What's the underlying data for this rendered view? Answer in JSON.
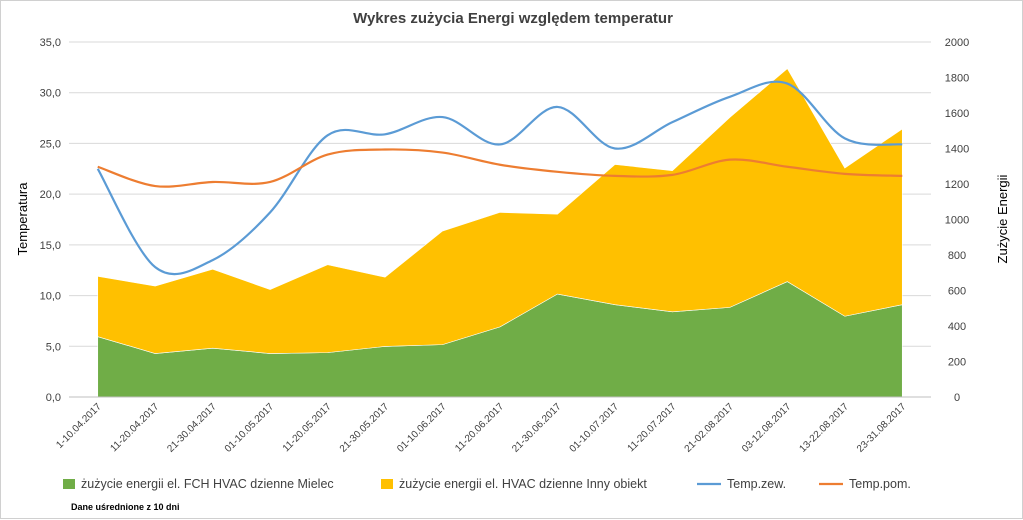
{
  "chart_data": {
    "type": "area",
    "title": "Wykres  zużycia  Energi względem  temperatur",
    "ylabel_left": "Temperatura",
    "ylabel_right": "Zużycie Energii",
    "ylim_left": [
      0,
      35
    ],
    "ylim_right": [
      0,
      2000
    ],
    "yticks_left": [
      "0,0",
      "5,0",
      "10,0",
      "15,0",
      "20,0",
      "25,0",
      "30,0",
      "35,0"
    ],
    "yticks_right": [
      "0",
      "200",
      "400",
      "600",
      "800",
      "1000",
      "1200",
      "1400",
      "1600",
      "1800",
      "2000"
    ],
    "grid": true,
    "legend_position": "bottom",
    "categories": [
      "1-10.04.2017",
      "11-20.04.2017",
      "21-30.04.2017",
      "01-10.05.2017",
      "11-20.05.2017",
      "21-30.05.2017",
      "01-10.06.2017",
      "11-20.06.2017",
      "21-30.06.2017",
      "01-10.07.2017",
      "11-20.07.2017",
      "21-02.08.2017",
      "03-12.08.2017",
      "13-22.08.2017",
      "23-31.08.2017"
    ],
    "series": [
      {
        "name": "żużycie energii el. FCH  HVAC dzienne  Mielec",
        "kind": "area",
        "axis": "right",
        "color": "#70AD47",
        "values": [
          340,
          245,
          275,
          245,
          250,
          285,
          295,
          395,
          580,
          520,
          480,
          505,
          650,
          455,
          520
        ]
      },
      {
        "name": "żużycie energii el. HVAC dzienne  Inny obiekt",
        "kind": "area",
        "axis": "right",
        "color": "#FFC000",
        "values": [
          340,
          380,
          445,
          360,
          495,
          390,
          640,
          645,
          450,
          790,
          795,
          1070,
          1200,
          835,
          990
        ]
      },
      {
        "name": "Temp.zew.",
        "kind": "line",
        "axis": "left",
        "color": "#5B9BD5",
        "values": [
          22.5,
          12.8,
          13.5,
          18.2,
          25.8,
          25.9,
          27.6,
          24.9,
          28.6,
          24.5,
          27.1,
          29.6,
          30.9,
          25.5,
          24.9
        ]
      },
      {
        "name": "Temp.pom.",
        "kind": "line",
        "axis": "left",
        "color": "#ED7D31",
        "values": [
          22.7,
          20.8,
          21.2,
          21.2,
          23.9,
          24.4,
          24.1,
          22.9,
          22.2,
          21.8,
          21.9,
          23.4,
          22.7,
          22.0,
          21.8
        ]
      }
    ],
    "note": "Dane uśrednione z 10 dni"
  }
}
